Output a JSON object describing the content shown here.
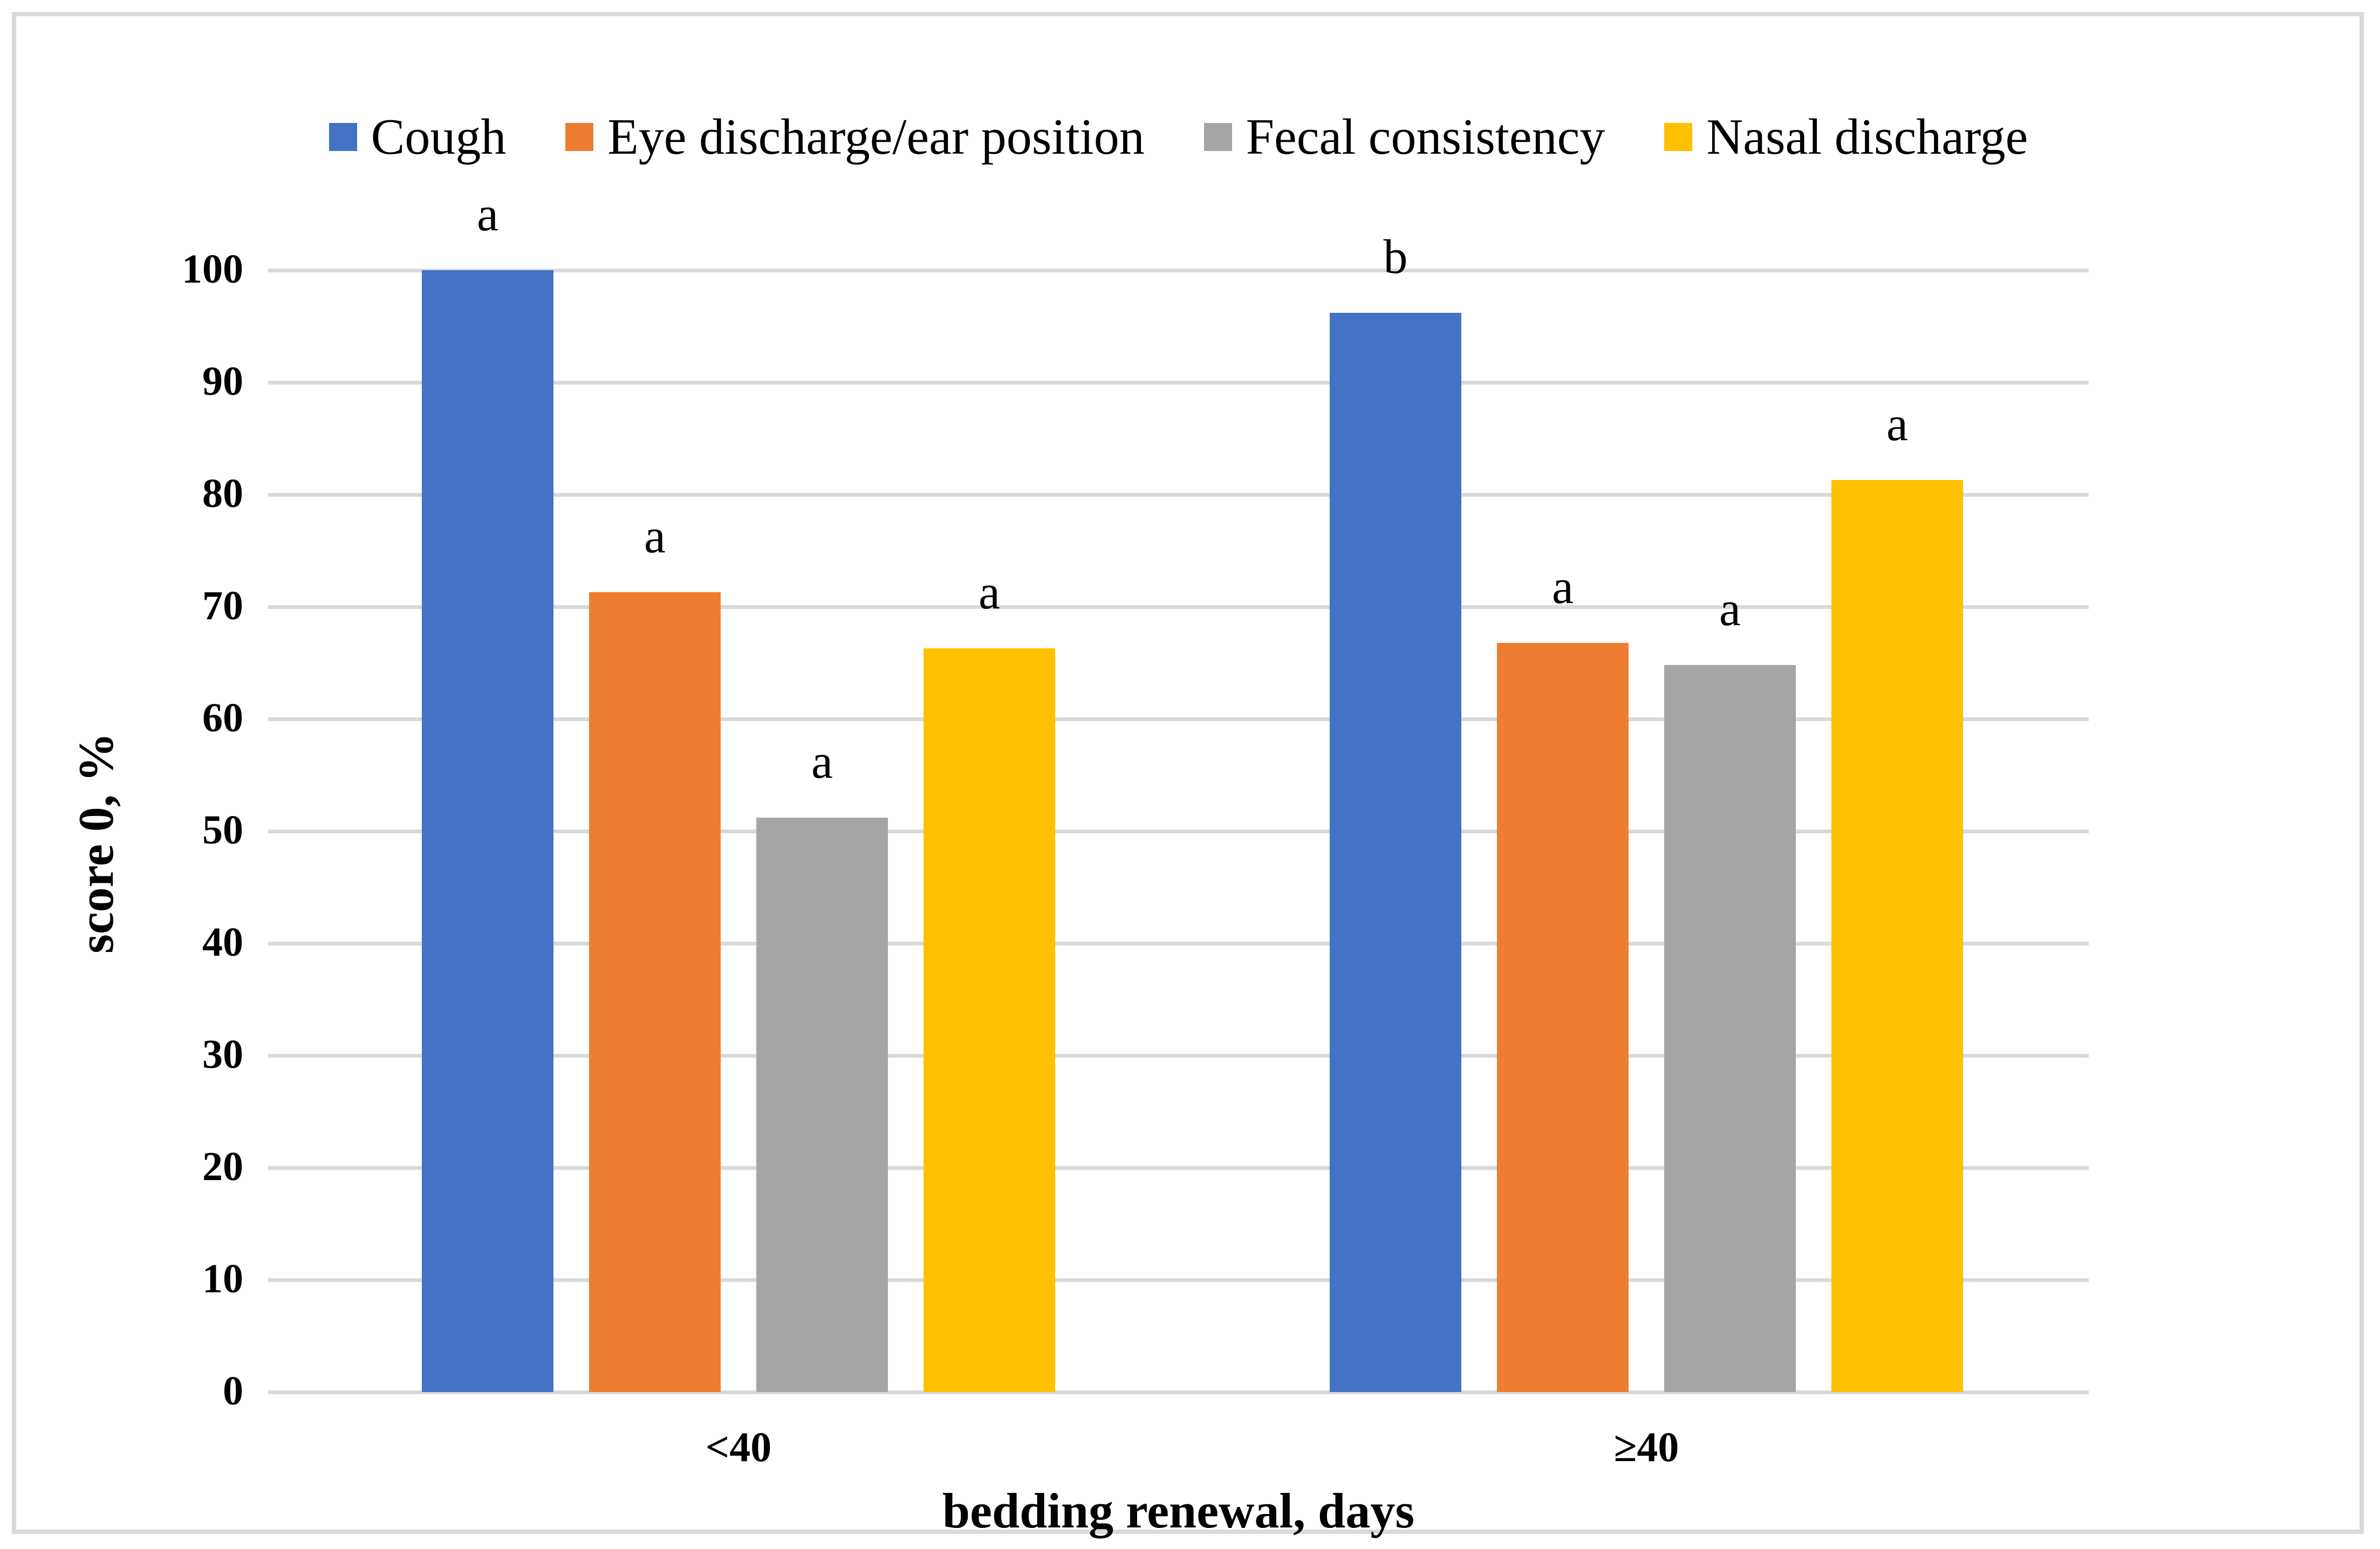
{
  "figure": {
    "background": "#FFFFFF",
    "frame_color": "#D9D9D9",
    "grid_color": "#D9D9D9",
    "text_color": "#000000"
  },
  "legend": {
    "items": [
      {
        "label": "Cough",
        "color": "#4472C4"
      },
      {
        "label": "Eye discharge/ear position",
        "color": "#ED7D31"
      },
      {
        "label": "Fecal consistency",
        "color": "#A5A5A5"
      },
      {
        "label": "Nasal discharge",
        "color": "#FFC000"
      }
    ]
  },
  "axes": {
    "y_title": "score 0, %",
    "x_title": "bedding renewal, days",
    "y_tick_labels": [
      "100",
      "90",
      "80",
      "70",
      "60",
      "50",
      "40",
      "30",
      "20",
      "10",
      "0"
    ]
  },
  "chart_data": {
    "type": "bar",
    "title": "",
    "categories": [
      "<40",
      "≥40"
    ],
    "series": [
      {
        "name": "Cough",
        "color": "#4472C4",
        "values": [
          100,
          96.2
        ],
        "letters": [
          "a",
          "b"
        ]
      },
      {
        "name": "Eye discharge/ear position",
        "color": "#ED7D31",
        "values": [
          71.3,
          66.8
        ],
        "letters": [
          "a",
          "a"
        ]
      },
      {
        "name": "Fecal consistency",
        "color": "#A5A5A5",
        "values": [
          51.2,
          64.8
        ],
        "letters": [
          "a",
          "a"
        ]
      },
      {
        "name": "Nasal discharge",
        "color": "#FFC000",
        "values": [
          66.3,
          81.3
        ],
        "letters": [
          "a",
          "a"
        ]
      }
    ],
    "xlabel": "bedding renewal, days",
    "ylabel": "score 0, %",
    "ylim": [
      0,
      100
    ],
    "ytick_step": 10,
    "grid": true,
    "legend_position": "top"
  }
}
